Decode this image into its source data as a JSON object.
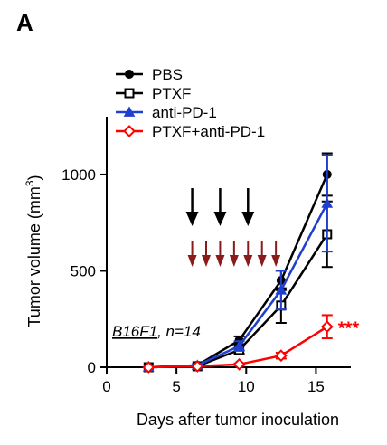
{
  "panel_label": "A",
  "chart_data": {
    "type": "line",
    "title": "",
    "xlabel": "Days after tumor inoculation",
    "ylabel_parts": [
      "Tumor volume (mm",
      "3",
      ")"
    ],
    "xlim": [
      0,
      17.5
    ],
    "ylim": [
      0,
      1300
    ],
    "xticks": [
      0,
      5,
      10,
      15
    ],
    "yticks": [
      0,
      500,
      1000
    ],
    "grid": false,
    "legend_position": "top-left",
    "annotation": {
      "model_italic": "B16F1",
      "rest": ", n=14"
    },
    "significance": {
      "text": "***",
      "color": "#ff0000",
      "x": 15.8,
      "y": 210
    },
    "treatment_arrows_ptxf": {
      "days": [
        6,
        8,
        10
      ],
      "color": "#000000"
    },
    "treatment_arrows_pd1": {
      "days": [
        6,
        7,
        8,
        9,
        10,
        11,
        12
      ],
      "color": "#8b1a1a"
    },
    "series": [
      {
        "name": "PBS",
        "color": "#000000",
        "marker": "filled-circle",
        "x": [
          3,
          6.5,
          9.5,
          12.5,
          15.8
        ],
        "y": [
          0,
          10,
          140,
          450,
          1000
        ],
        "err": [
          0,
          5,
          20,
          50,
          110
        ]
      },
      {
        "name": "PTXF",
        "color": "#000000",
        "marker": "open-square",
        "x": [
          3,
          6.5,
          9.5,
          12.5,
          15.8
        ],
        "y": [
          0,
          5,
          90,
          320,
          690
        ],
        "err": [
          0,
          5,
          20,
          90,
          170
        ]
      },
      {
        "name": "anti-PD-1",
        "color": "#1f3fcf",
        "marker": "filled-triangle",
        "x": [
          3,
          6.5,
          9.5,
          12.5,
          15.8
        ],
        "y": [
          0,
          10,
          110,
          400,
          850
        ],
        "err": [
          0,
          5,
          25,
          100,
          250
        ]
      },
      {
        "name": "PTXF+anti-PD-1",
        "color": "#ff0000",
        "marker": "open-diamond",
        "x": [
          3,
          6.5,
          9.5,
          12.5,
          15.8
        ],
        "y": [
          0,
          5,
          15,
          60,
          210
        ],
        "err": [
          0,
          3,
          5,
          15,
          60
        ]
      }
    ]
  }
}
